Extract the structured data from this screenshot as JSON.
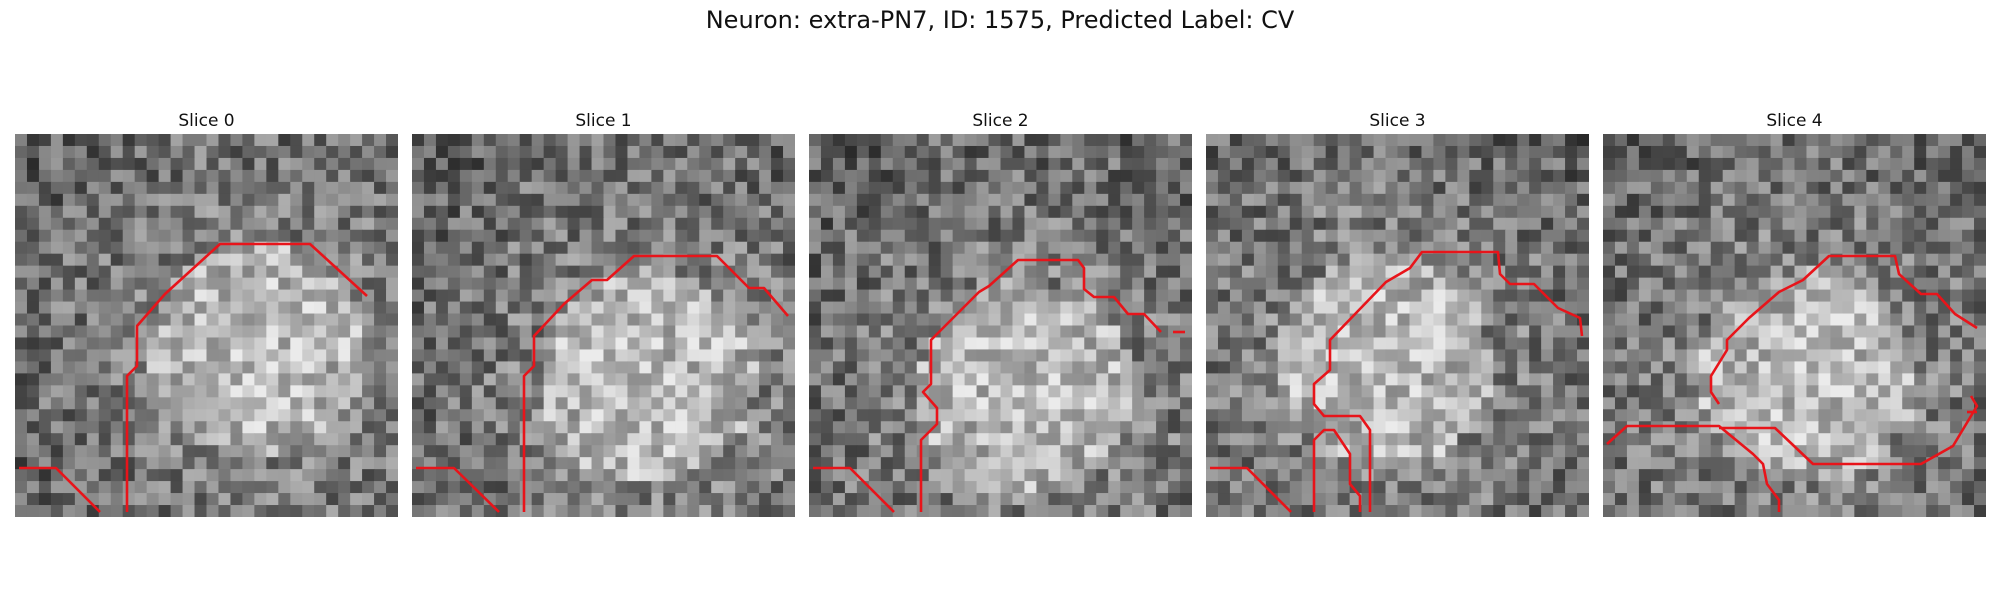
{
  "figure": {
    "title": "Neuron: extra-PN7, ID: 1575, Predicted Label: CV"
  },
  "slices": [
    {
      "title": "Slice 0"
    },
    {
      "title": "Slice 1"
    },
    {
      "title": "Slice 2"
    },
    {
      "title": "Slice 3"
    },
    {
      "title": "Slice 4"
    }
  ],
  "colors": {
    "contour": "#e8141a",
    "background": "#ffffff"
  }
}
